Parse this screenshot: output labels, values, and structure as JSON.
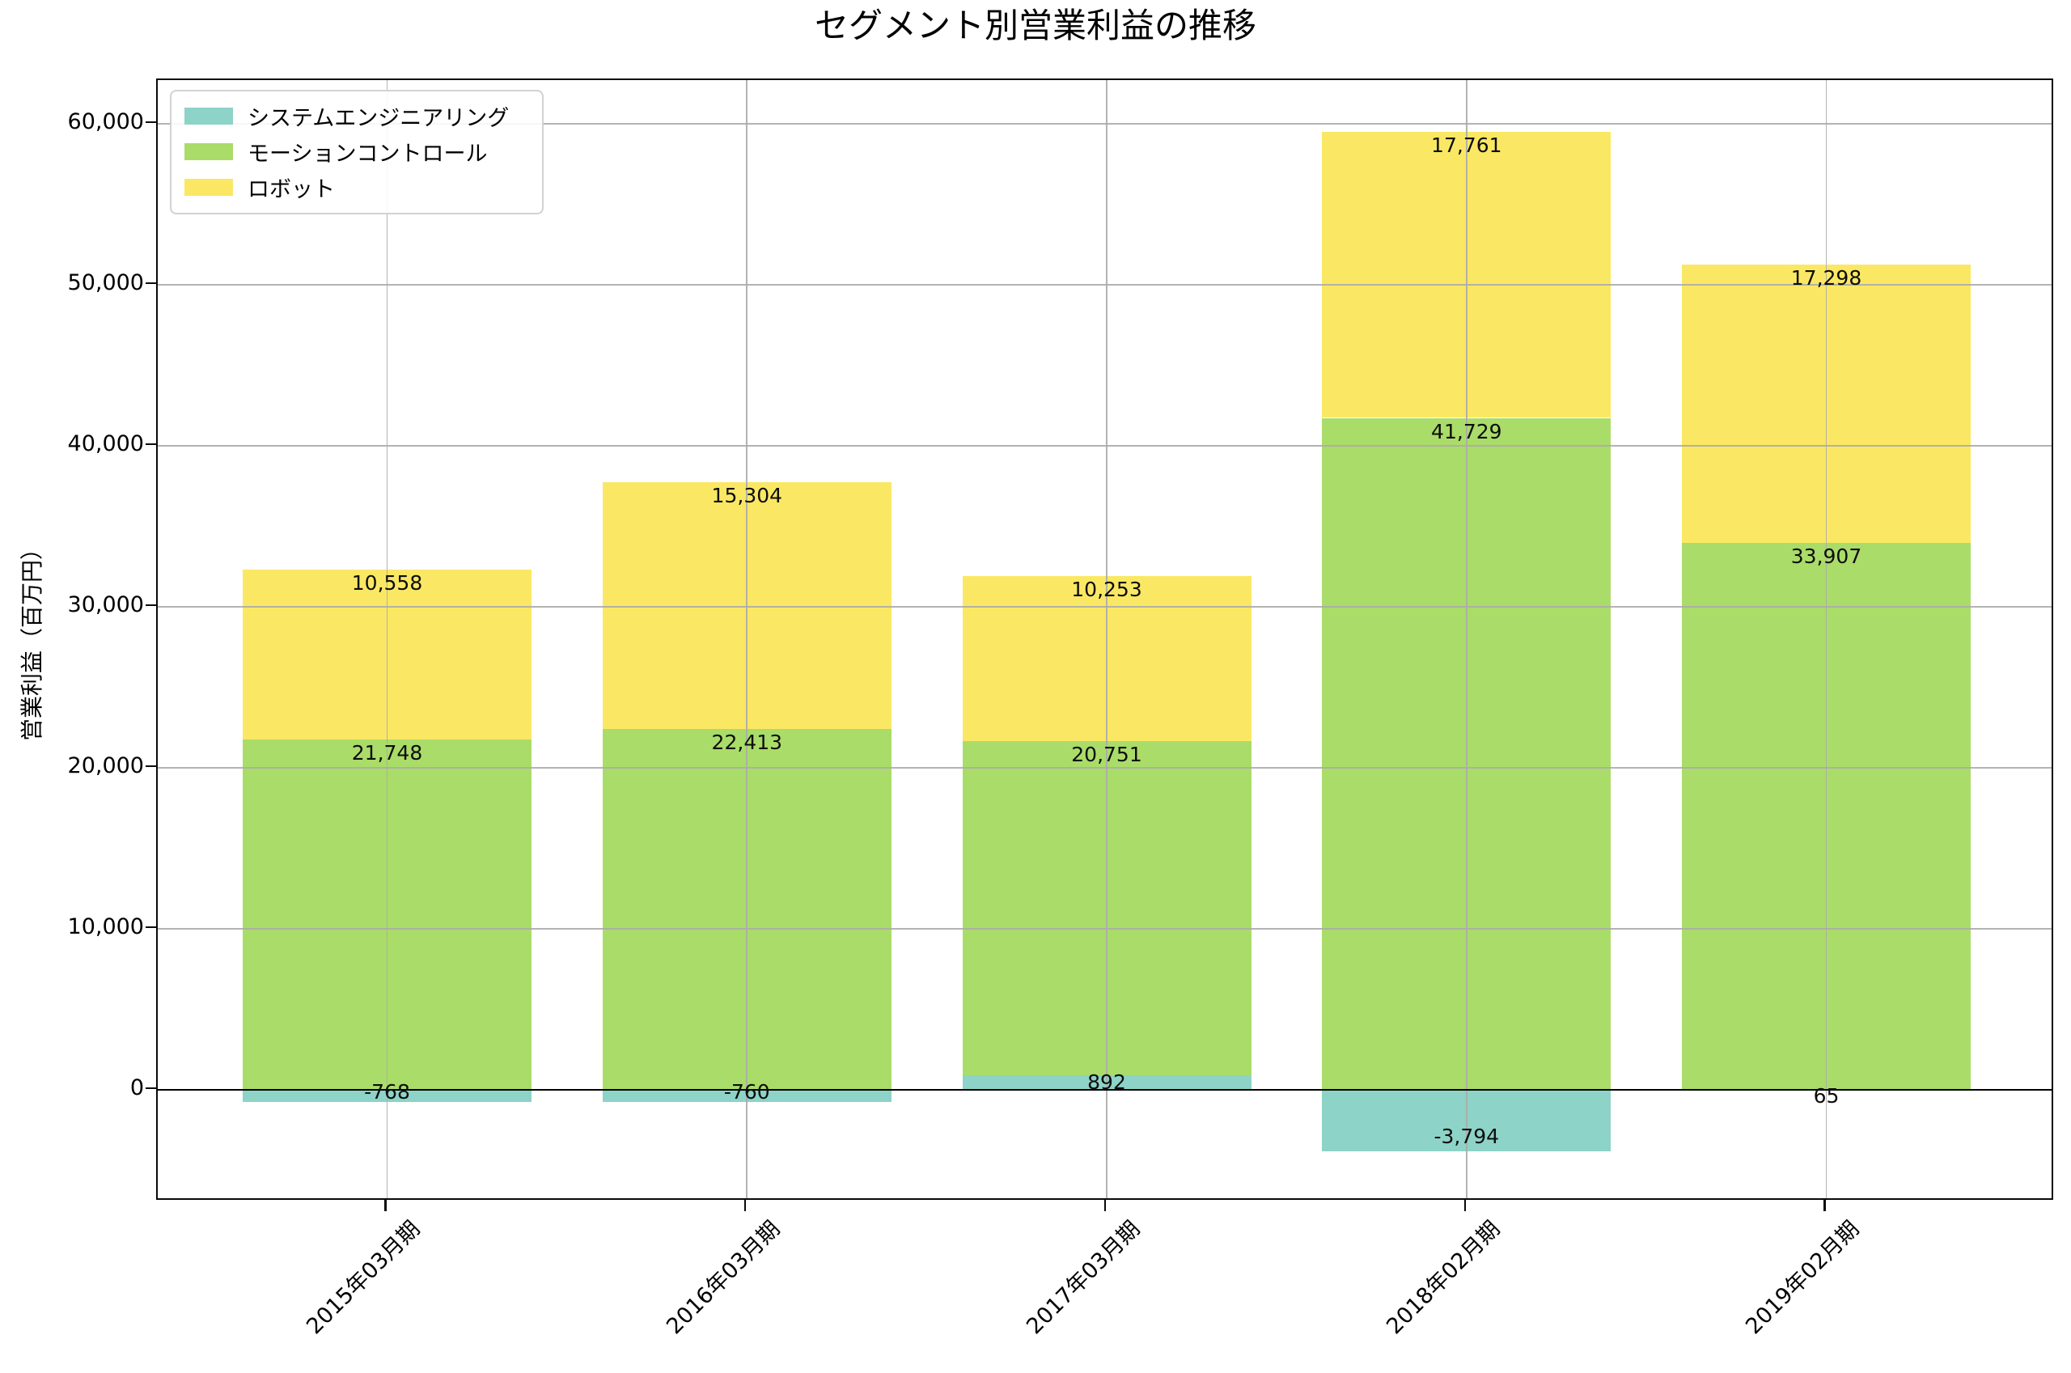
{
  "chart_data": {
    "type": "bar",
    "stacked": true,
    "title": "セグメント別営業利益の推移",
    "xlabel": "",
    "ylabel": "営業利益（百万円）",
    "categories": [
      "2015年03月期",
      "2016年03月期",
      "2017年03月期",
      "2018年02月期",
      "2019年02月期"
    ],
    "series": [
      {
        "name": "システムエンジニアリング",
        "color": "#8DD3C7",
        "values": [
          -768,
          -760,
          892,
          -3794,
          65
        ],
        "labels": [
          "-768",
          "-760",
          "892",
          "-3,794",
          "65"
        ]
      },
      {
        "name": "モーションコントロール",
        "color": "#AADC69",
        "values": [
          21748,
          22413,
          20751,
          41729,
          33907
        ],
        "labels": [
          "21,748",
          "22,413",
          "20,751",
          "41,729",
          "33,907"
        ]
      },
      {
        "name": "ロボット",
        "color": "#FAE864",
        "values": [
          10558,
          15304,
          10253,
          17761,
          17298
        ],
        "labels": [
          "10,558",
          "15,304",
          "10,253",
          "17,761",
          "17,298"
        ]
      }
    ],
    "yticks": {
      "values": [
        0,
        10000,
        20000,
        30000,
        40000,
        50000,
        60000
      ],
      "labels": [
        "0",
        "10,000",
        "20,000",
        "30,000",
        "40,000",
        "50,000",
        "60,000"
      ]
    },
    "ylim": [
      -6930,
      62710
    ],
    "grid": true,
    "grid_over_bars": true,
    "zero_line": true,
    "legend_position": "upper left",
    "x_tick_rotation_deg": 45
  }
}
